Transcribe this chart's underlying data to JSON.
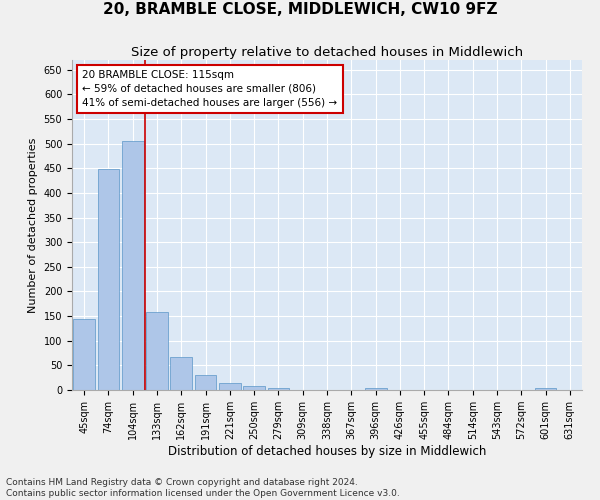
{
  "title": "20, BRAMBLE CLOSE, MIDDLEWICH, CW10 9FZ",
  "subtitle": "Size of property relative to detached houses in Middlewich",
  "xlabel": "Distribution of detached houses by size in Middlewich",
  "ylabel": "Number of detached properties",
  "categories": [
    "45sqm",
    "74sqm",
    "104sqm",
    "133sqm",
    "162sqm",
    "191sqm",
    "221sqm",
    "250sqm",
    "279sqm",
    "309sqm",
    "338sqm",
    "367sqm",
    "396sqm",
    "426sqm",
    "455sqm",
    "484sqm",
    "514sqm",
    "543sqm",
    "572sqm",
    "601sqm",
    "631sqm"
  ],
  "values": [
    145,
    448,
    505,
    158,
    67,
    30,
    14,
    9,
    5,
    0,
    0,
    0,
    5,
    0,
    0,
    0,
    0,
    0,
    0,
    5,
    0
  ],
  "bar_color": "#aec6e8",
  "bar_edge_color": "#5a96c8",
  "vline_x": 2.5,
  "vline_color": "#cc0000",
  "annotation_text": "20 BRAMBLE CLOSE: 115sqm\n← 59% of detached houses are smaller (806)\n41% of semi-detached houses are larger (556) →",
  "annotation_box_color": "#ffffff",
  "annotation_box_edge": "#cc0000",
  "ylim": [
    0,
    670
  ],
  "yticks": [
    0,
    50,
    100,
    150,
    200,
    250,
    300,
    350,
    400,
    450,
    500,
    550,
    600,
    650
  ],
  "footer_line1": "Contains HM Land Registry data © Crown copyright and database right 2024.",
  "footer_line2": "Contains public sector information licensed under the Open Government Licence v3.0.",
  "plot_bg_color": "#dce8f5",
  "fig_bg_color": "#f0f0f0",
  "grid_color": "#ffffff",
  "title_fontsize": 11,
  "subtitle_fontsize": 9.5,
  "xlabel_fontsize": 8.5,
  "ylabel_fontsize": 8,
  "tick_fontsize": 7,
  "footer_fontsize": 6.5,
  "ann_fontsize": 7.5
}
